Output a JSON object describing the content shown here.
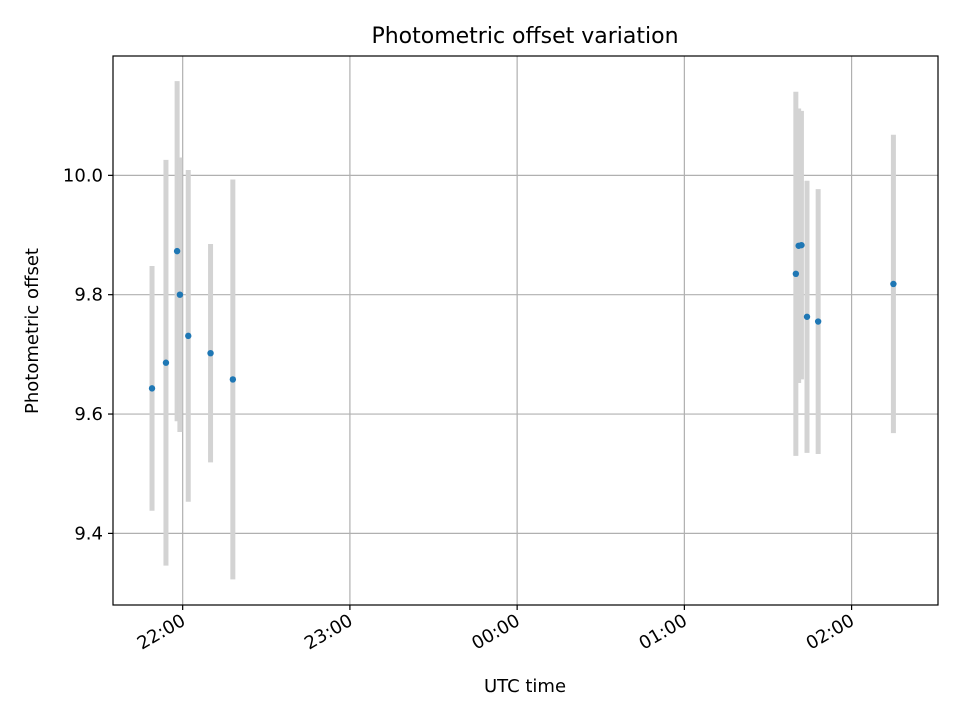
{
  "chart_data": {
    "type": "scatter",
    "title": "Photometric offset variation",
    "xlabel": "UTC time",
    "ylabel": "Photometric offset",
    "x_ticks": [
      "22:00",
      "23:00",
      "00:00",
      "01:00",
      "02:00"
    ],
    "y_ticks": [
      "9.4",
      "9.6",
      "9.8",
      "10.0"
    ],
    "xlim": [
      "21:35",
      "02:31"
    ],
    "ylim": [
      9.28,
      10.2
    ],
    "grid": true,
    "colors": {
      "points": "#1f77b4",
      "errorbars": "#d3d3d3",
      "grid": "#b0b0b0",
      "axes": "#000000"
    },
    "series": [
      {
        "points": [
          {
            "x": "21:49",
            "y": 9.643,
            "yerr": 0.205
          },
          {
            "x": "21:54",
            "y": 9.686,
            "yerr": 0.34
          },
          {
            "x": "21:58",
            "y": 9.873,
            "yerr": 0.285
          },
          {
            "x": "21:59",
            "y": 9.8,
            "yerr": 0.23
          },
          {
            "x": "22:02",
            "y": 9.731,
            "yerr": 0.278
          },
          {
            "x": "22:10",
            "y": 9.702,
            "yerr": 0.183
          },
          {
            "x": "22:18",
            "y": 9.658,
            "yerr": 0.335
          },
          {
            "x": "01:40",
            "y": 9.835,
            "yerr": 0.305
          },
          {
            "x": "01:41",
            "y": 9.882,
            "yerr": 0.23
          },
          {
            "x": "01:42",
            "y": 9.883,
            "yerr": 0.225
          },
          {
            "x": "01:44",
            "y": 9.763,
            "yerr": 0.228
          },
          {
            "x": "01:48",
            "y": 9.755,
            "yerr": 0.222
          },
          {
            "x": "02:15",
            "y": 9.818,
            "yerr": 0.25
          }
        ]
      }
    ]
  }
}
